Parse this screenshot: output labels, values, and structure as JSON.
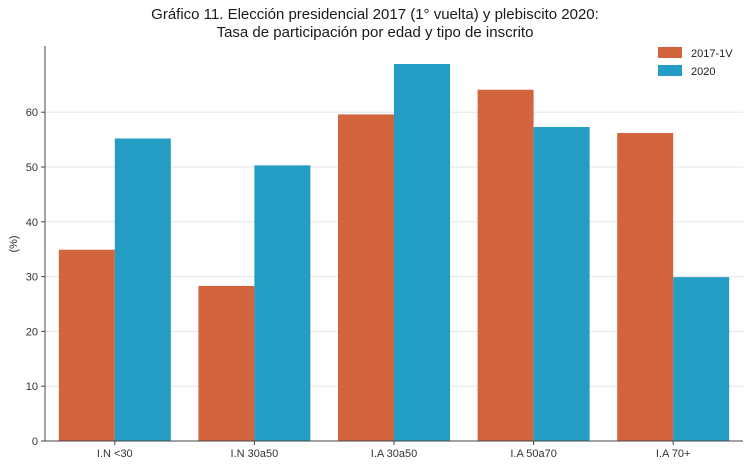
{
  "chart_data": {
    "type": "bar",
    "title": "Gráfico 11. Elección presidencial 2017 (1° vuelta) y plebiscito 2020:",
    "subtitle": "Tasa de participación por edad y tipo de inscrito",
    "xlabel": "",
    "ylabel": "(%)",
    "ylim": [
      0,
      72
    ],
    "yticks": [
      0,
      10,
      20,
      30,
      40,
      50,
      60
    ],
    "grid": true,
    "legend_position": "top-right",
    "categories": [
      "I.N <30",
      "I.N 30a50",
      "I.A 30a50",
      "I.A 50a70",
      "I.A 70+"
    ],
    "series": [
      {
        "name": "2017-1V",
        "color": "#D3653E",
        "values": [
          34.9,
          28.3,
          59.6,
          64.1,
          56.2
        ]
      },
      {
        "name": "2020",
        "color": "#239DC4",
        "values": [
          55.2,
          50.3,
          68.8,
          57.3,
          29.9
        ]
      }
    ]
  }
}
